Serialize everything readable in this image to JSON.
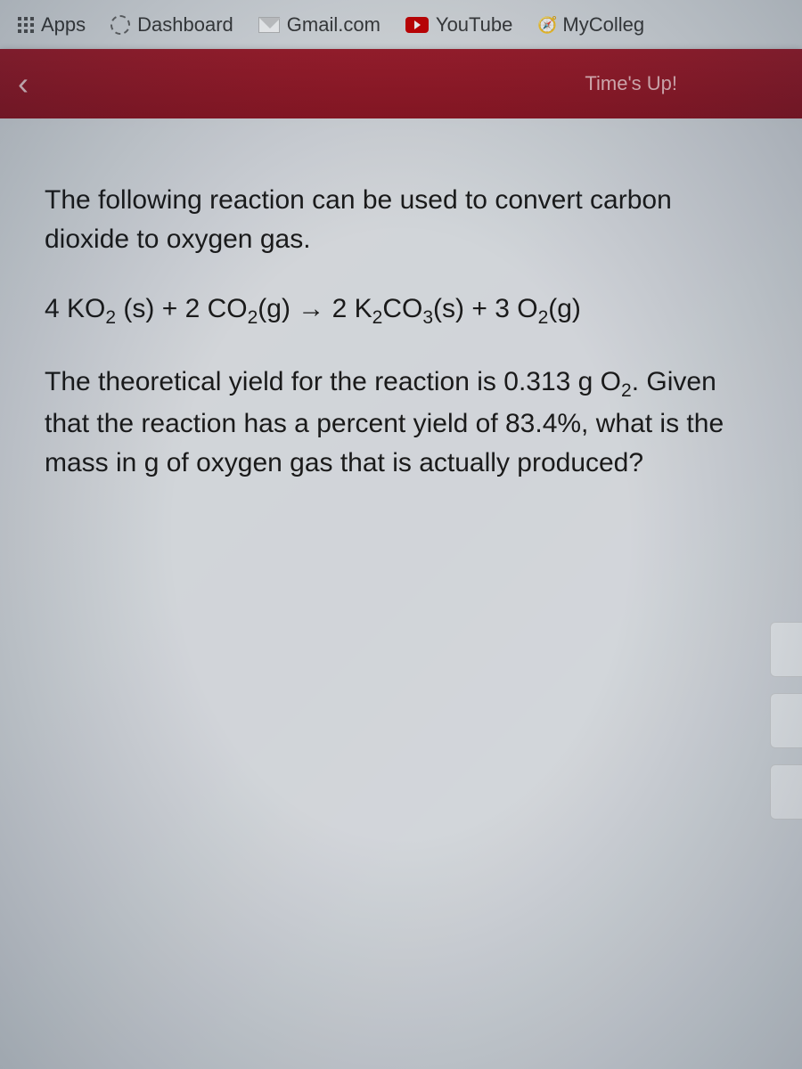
{
  "bookmarks": {
    "apps": "Apps",
    "dashboard": "Dashboard",
    "gmail": "Gmail.com",
    "youtube": "YouTube",
    "mycollege": "MyColleg"
  },
  "header": {
    "timer": "Time's Up!"
  },
  "question": {
    "intro": "The following reaction can be used to convert carbon dioxide to oxygen gas.",
    "equation_html": "4 KO<sub>2</sub> (s) + 2 CO<sub>2</sub>(g) → 2 K<sub>2</sub>CO<sub>3</sub>(s) + 3 O<sub>2</sub>(g)",
    "body_html": "The theoretical yield for the reaction is 0.313 g O<sub>2</sub>. Given that the reaction has a percent yield of 83.4%, what is the mass in g of oxygen gas that is actually produced?"
  },
  "colors": {
    "header_bg": "#8a1522",
    "content_bg": "#e8ebee",
    "text": "#1a1a1a",
    "timer_text": "#e8b8bc"
  }
}
